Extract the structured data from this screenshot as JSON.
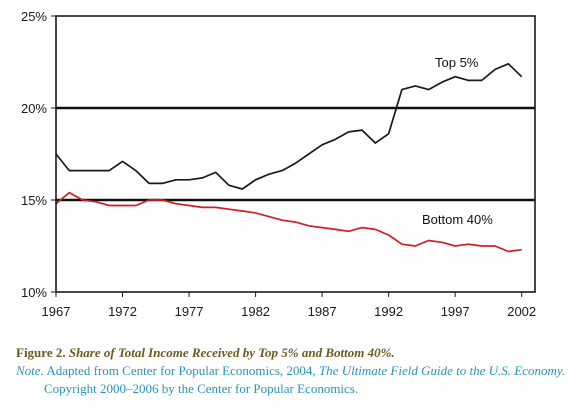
{
  "chart_data": {
    "type": "line",
    "title": "",
    "xlabel": "",
    "ylabel": "",
    "xlim": [
      1967,
      2003
    ],
    "ylim": [
      10,
      25
    ],
    "y_unit": "%",
    "x_ticks": [
      1967,
      1972,
      1977,
      1982,
      1987,
      1992,
      1997,
      2002
    ],
    "y_ticks": [
      10,
      15,
      20,
      25
    ],
    "y_tick_labels": [
      "10%",
      "15%",
      "20%",
      "25%"
    ],
    "reference_lines": [
      15,
      20
    ],
    "series": [
      {
        "name": "Top 5%",
        "color": "#1a1a1a",
        "x": [
          1967,
          1968,
          1969,
          1970,
          1971,
          1972,
          1973,
          1974,
          1975,
          1976,
          1977,
          1978,
          1979,
          1980,
          1981,
          1982,
          1983,
          1984,
          1985,
          1986,
          1987,
          1988,
          1989,
          1990,
          1991,
          1992,
          1993,
          1994,
          1995,
          1996,
          1997,
          1998,
          1999,
          2000,
          2001,
          2002
        ],
        "values": [
          17.5,
          16.6,
          16.6,
          16.6,
          16.6,
          17.1,
          16.6,
          15.9,
          15.9,
          16.1,
          16.1,
          16.2,
          16.5,
          15.8,
          15.6,
          16.1,
          16.4,
          16.6,
          17.0,
          17.5,
          18.0,
          18.3,
          18.7,
          18.8,
          18.1,
          18.6,
          21.0,
          21.2,
          21.0,
          21.4,
          21.7,
          21.5,
          21.5,
          22.1,
          22.4,
          21.7
        ]
      },
      {
        "name": "Bottom 40%",
        "color": "#d11f1f",
        "x": [
          1967,
          1968,
          1969,
          1970,
          1971,
          1972,
          1973,
          1974,
          1975,
          1976,
          1977,
          1978,
          1979,
          1980,
          1981,
          1982,
          1983,
          1984,
          1985,
          1986,
          1987,
          1988,
          1989,
          1990,
          1991,
          1992,
          1993,
          1994,
          1995,
          1996,
          1997,
          1998,
          1999,
          2000,
          2001,
          2002
        ],
        "values": [
          14.8,
          15.4,
          15.0,
          14.9,
          14.7,
          14.7,
          14.7,
          15.0,
          15.0,
          14.8,
          14.7,
          14.6,
          14.6,
          14.5,
          14.4,
          14.3,
          14.1,
          13.9,
          13.8,
          13.6,
          13.5,
          13.4,
          13.3,
          13.5,
          13.4,
          13.1,
          12.6,
          12.5,
          12.8,
          12.7,
          12.5,
          12.6,
          12.5,
          12.5,
          12.2,
          12.3
        ]
      }
    ],
    "series_labels": [
      "Top 5%",
      "Bottom 40%"
    ]
  },
  "caption": {
    "figure_label": "Figure 2.",
    "figure_title": "Share of Total Income Received by Top 5% and Bottom 40%.",
    "note_prefix": "Note.",
    "note_text": "Adapted from Center for Popular Economics, 2004,",
    "book_title": "The Ultimate Field Guide to the U.S. Economy.",
    "copyright": "Copyright 2000–2006 by the Center for Popular Economics."
  }
}
